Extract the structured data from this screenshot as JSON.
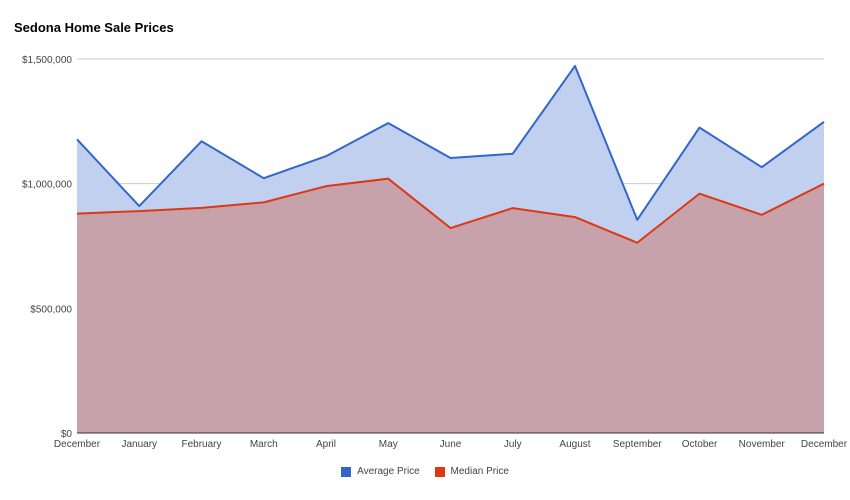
{
  "chart_data": {
    "type": "area",
    "title": "Sedona Home Sale Prices",
    "xlabel": "",
    "ylabel": "",
    "categories": [
      "December",
      "January",
      "February",
      "March",
      "April",
      "May",
      "June",
      "July",
      "August",
      "September",
      "October",
      "November",
      "December"
    ],
    "ylim": [
      0,
      1500000
    ],
    "y_ticks": [
      0,
      500000,
      1000000,
      1500000
    ],
    "y_tick_labels": [
      "$0",
      "$500,000",
      "$1,000,000",
      "$1,500,000"
    ],
    "grid": true,
    "legend_position": "bottom",
    "series": [
      {
        "name": "Average Price",
        "color": "#3366cc",
        "fill": "#c1d0ef",
        "values": [
          1178000,
          910000,
          1170000,
          1022000,
          1110000,
          1243000,
          1103000,
          1120000,
          1472000,
          855000,
          1225000,
          1066000,
          1248000
        ]
      },
      {
        "name": "Median Price",
        "color": "#dc3912",
        "fill": "#c8a2ab",
        "values": [
          880000,
          890000,
          903000,
          925000,
          990000,
          1020000,
          822000,
          902000,
          866000,
          763000,
          960000,
          875000,
          1000000
        ]
      }
    ]
  }
}
